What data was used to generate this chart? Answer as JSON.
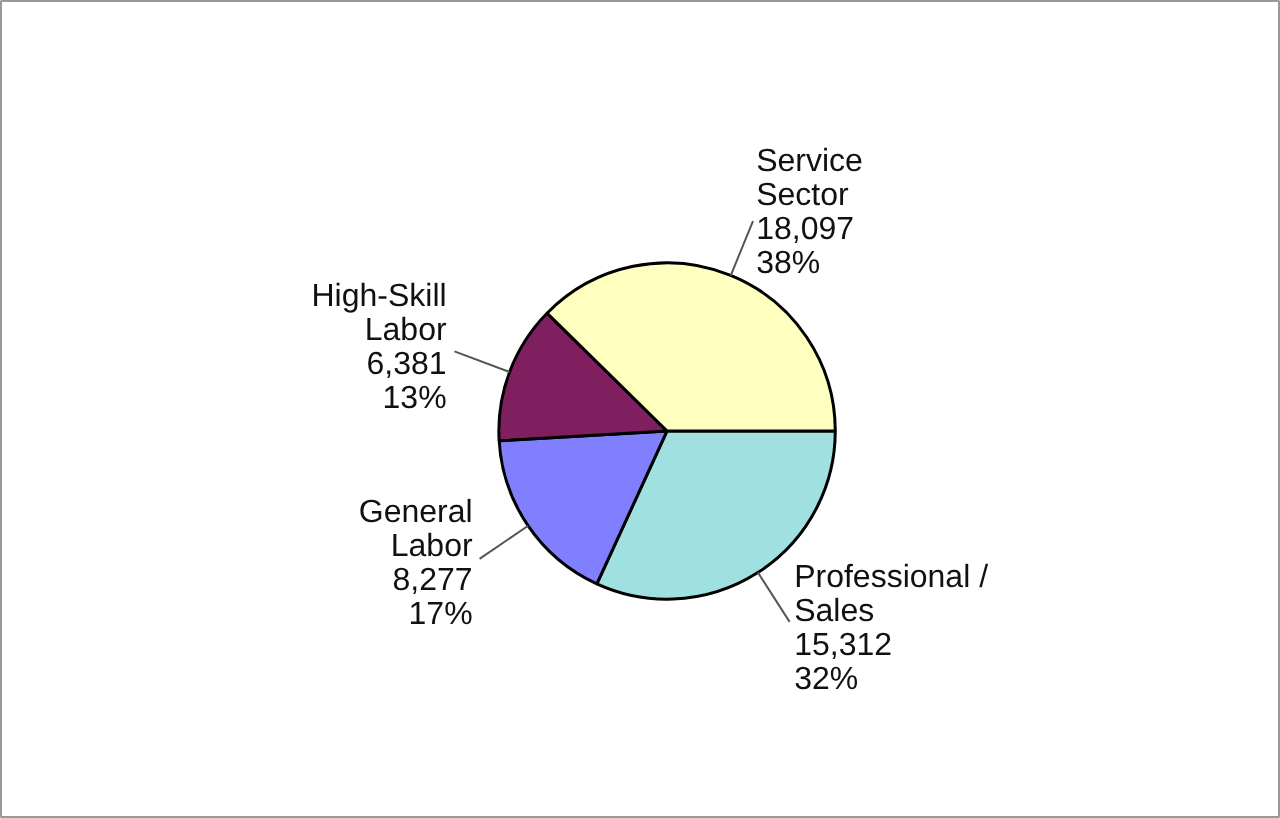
{
  "chart_data": {
    "type": "pie",
    "categories": [
      "Professional /\nSales",
      "General\nLabor",
      "High-Skill\nLabor",
      "Service\nSector"
    ],
    "values": [
      15312,
      8277,
      6381,
      18097
    ],
    "value_labels": [
      "15,312\n32%",
      "8,277\n17%",
      "6,381\n13%",
      "18,097\n38%"
    ],
    "colors": [
      "#a0e0e0",
      "#8080ff",
      "#801f60",
      "#ffffc0"
    ]
  }
}
